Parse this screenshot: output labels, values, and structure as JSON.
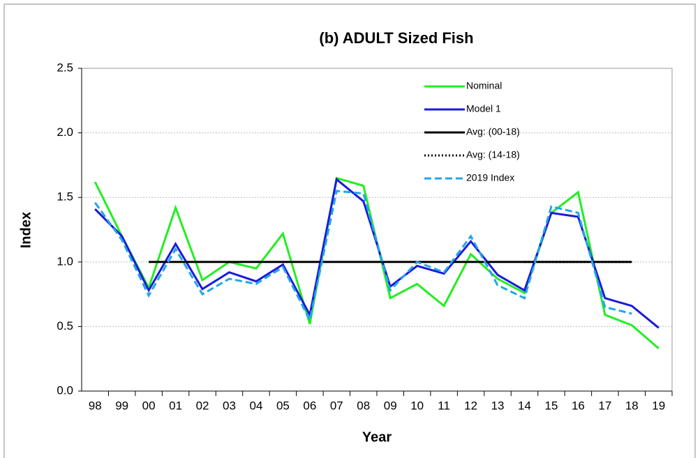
{
  "chart_data": {
    "type": "line",
    "title": "(b) ADULT Sized Fish",
    "x_label": "Year",
    "y_label": "Index",
    "categories": [
      "98",
      "99",
      "00",
      "01",
      "02",
      "03",
      "04",
      "05",
      "06",
      "07",
      "08",
      "09",
      "10",
      "11",
      "12",
      "13",
      "14",
      "15",
      "16",
      "17",
      "18",
      "19"
    ],
    "series": [
      {
        "name": "Nominal",
        "color": "#22ee22",
        "style": "solid",
        "values": [
          1.62,
          1.2,
          0.8,
          1.42,
          0.86,
          1.0,
          0.95,
          1.22,
          0.52,
          1.65,
          1.59,
          0.72,
          0.83,
          0.66,
          1.06,
          0.87,
          0.76,
          1.38,
          1.54,
          0.59,
          0.51,
          0.33
        ]
      },
      {
        "name": "Model 1",
        "color": "#1a1add",
        "style": "solid",
        "values": [
          1.41,
          1.2,
          0.78,
          1.14,
          0.79,
          0.92,
          0.85,
          0.98,
          0.59,
          1.64,
          1.47,
          0.81,
          0.97,
          0.91,
          1.16,
          0.9,
          0.78,
          1.38,
          1.35,
          0.72,
          0.66,
          0.49
        ]
      },
      {
        "name": "Avg: (00-18)",
        "color": "#000000",
        "style": "solid",
        "values": [
          null,
          null,
          1.0,
          1.0,
          1.0,
          1.0,
          1.0,
          1.0,
          1.0,
          1.0,
          1.0,
          1.0,
          1.0,
          1.0,
          1.0,
          1.0,
          1.0,
          1.0,
          1.0,
          1.0,
          1.0,
          null
        ]
      },
      {
        "name": "Avg: (14-18)",
        "color": "#000000",
        "style": "dotted",
        "values": [
          null,
          null,
          null,
          null,
          null,
          null,
          null,
          null,
          null,
          null,
          null,
          null,
          null,
          null,
          null,
          null,
          1.0,
          1.0,
          1.0,
          1.0,
          1.0,
          null
        ]
      },
      {
        "name": "2019 Index",
        "color": "#22a5ea",
        "style": "dashed",
        "values": [
          1.46,
          1.17,
          0.74,
          1.1,
          0.75,
          0.87,
          0.83,
          0.96,
          0.55,
          1.55,
          1.53,
          0.78,
          1.0,
          0.92,
          1.2,
          0.82,
          0.72,
          1.43,
          1.38,
          0.65,
          0.6,
          null
        ]
      }
    ],
    "ylim": [
      0,
      2.5
    ],
    "yticks": [
      {
        "value": 0,
        "label": "0.0"
      },
      {
        "value": 0.5,
        "label": "0.5"
      },
      {
        "value": 1,
        "label": "1.0"
      },
      {
        "value": 1.5,
        "label": "1.5"
      },
      {
        "value": 2,
        "label": "2.0"
      },
      {
        "value": 2.5,
        "label": "2.5"
      }
    ],
    "grid": true,
    "legend": "top-right"
  }
}
